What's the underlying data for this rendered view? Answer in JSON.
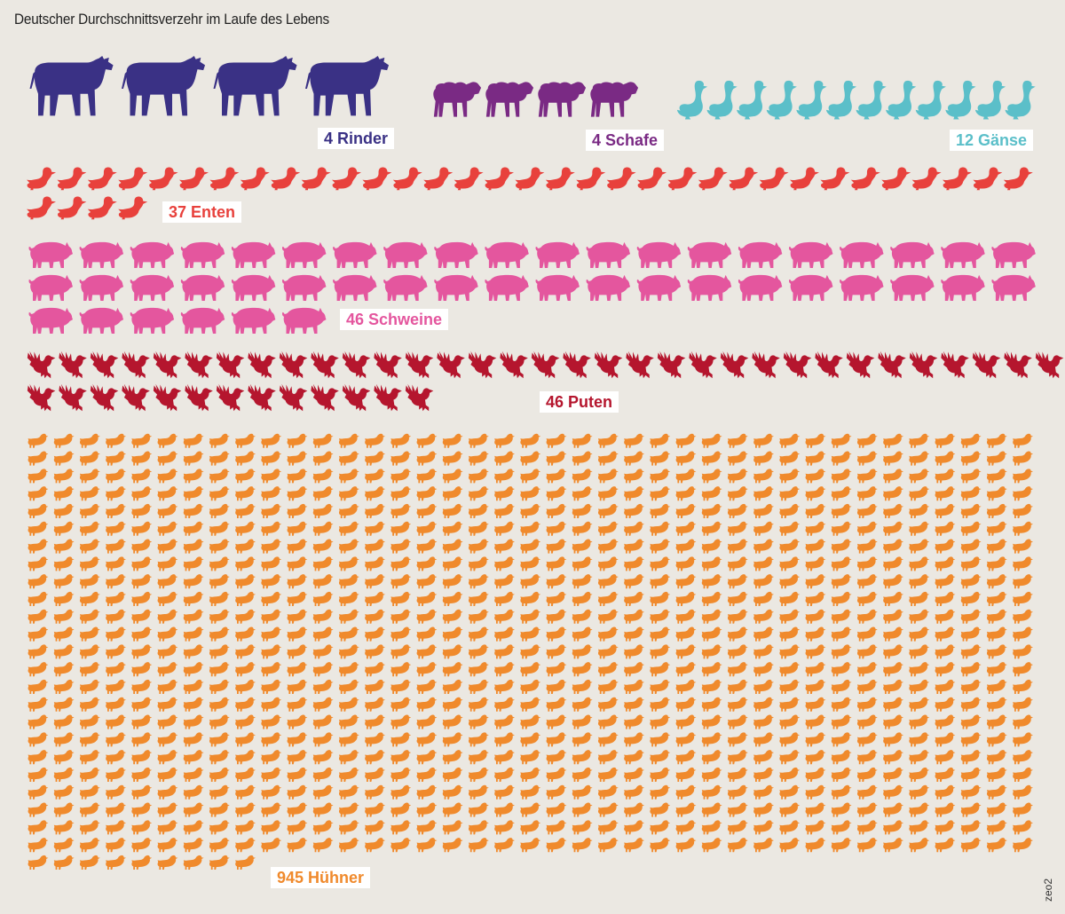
{
  "title": "Deutscher Durchschnittsverzehr im Laufe des Lebens",
  "credit": "zeo2",
  "chart_data": {
    "type": "pictogram",
    "title": "Deutscher Durchschnittsverzehr im Laufe des Lebens",
    "series": [
      {
        "name": "Rinder",
        "label": "4 Rinder",
        "value": 4,
        "color": "#3a3185",
        "icon": "cow-icon"
      },
      {
        "name": "Schafe",
        "label": "4 Schafe",
        "value": 4,
        "color": "#7a2a84",
        "icon": "sheep-icon"
      },
      {
        "name": "Gänse",
        "label": "12 Gänse",
        "value": 12,
        "color": "#5bbfc9",
        "icon": "goose-icon"
      },
      {
        "name": "Enten",
        "label": "37 Enten",
        "value": 37,
        "color": "#e8413c",
        "icon": "duck-icon"
      },
      {
        "name": "Schweine",
        "label": "46 Schweine",
        "value": 46,
        "color": "#e4569e",
        "icon": "pig-icon"
      },
      {
        "name": "Puten",
        "label": "46 Puten",
        "value": 46,
        "color": "#b5162e",
        "icon": "turkey-icon"
      },
      {
        "name": "Hühner",
        "label": "945 Hühner",
        "value": 945,
        "color": "#f08a2c",
        "icon": "chicken-icon"
      }
    ]
  }
}
